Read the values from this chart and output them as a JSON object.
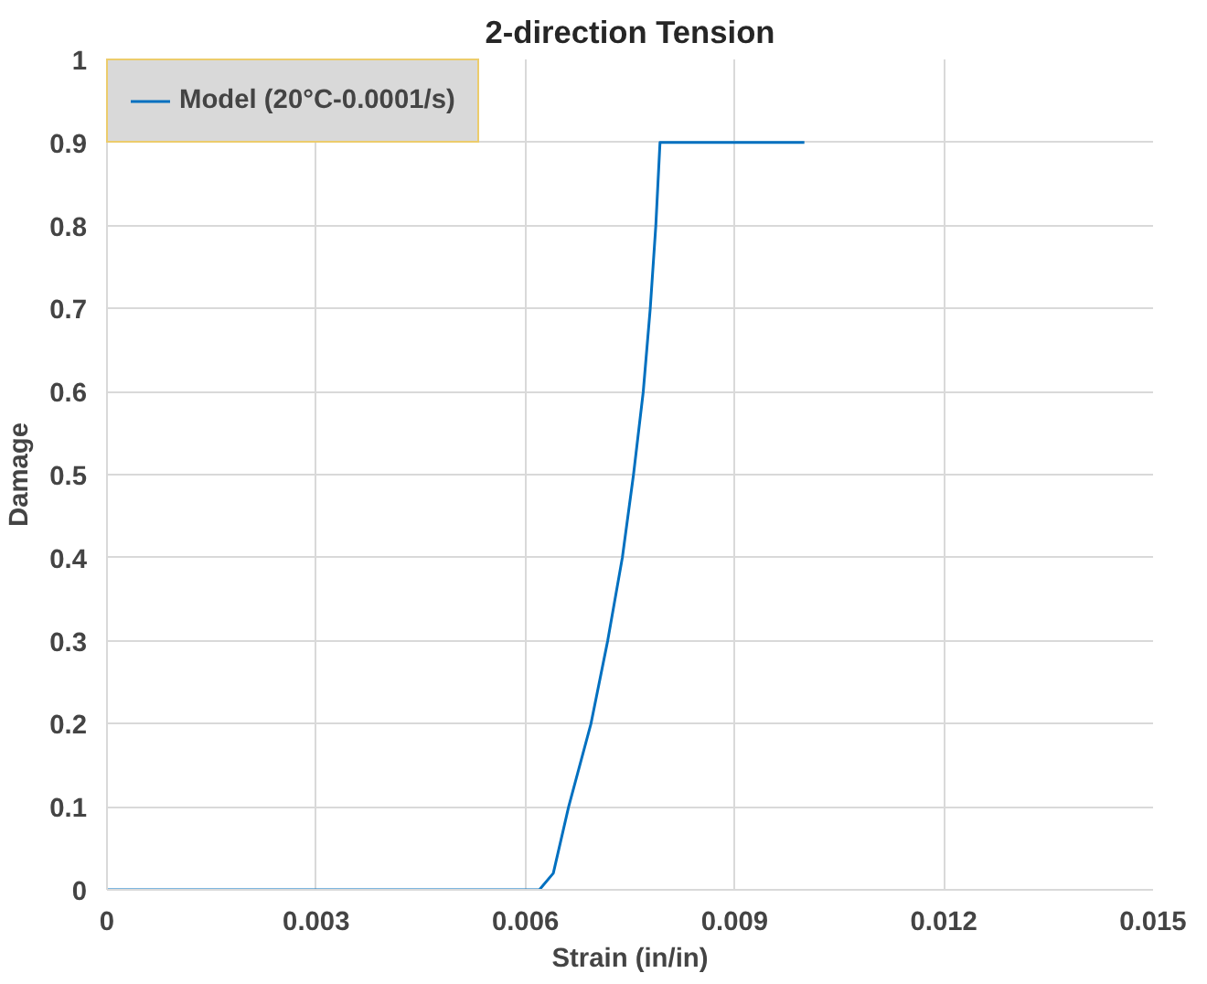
{
  "chart_data": {
    "type": "line",
    "title": "2-direction Tension",
    "xlabel": "Strain (in/in)",
    "ylabel": "Damage",
    "xlim": [
      0,
      0.015
    ],
    "xticks": [
      {
        "value": 0,
        "label": "0"
      },
      0.003,
      0.006,
      0.009,
      0.012,
      0.015
    ],
    "ylim": [
      0,
      1
    ],
    "yticks": [
      0,
      0.1,
      0.2,
      0.3,
      0.4,
      0.5,
      0.6,
      0.7,
      0.8,
      0.9,
      1
    ],
    "grid": true,
    "legend": "top left",
    "marker": "none",
    "line_style": "solid",
    "series": [
      {
        "name": "Model (20°C-0.0001/s)",
        "color": "#0070c0",
        "x": [
          0,
          0.0062,
          0.0064,
          0.00662,
          0.00694,
          0.00718,
          0.00739,
          0.00755,
          0.00769,
          0.00779,
          0.00787,
          0.00793,
          0.01
        ],
        "values": [
          0,
          0,
          0.02,
          0.1,
          0.2,
          0.3,
          0.4,
          0.5,
          0.6,
          0.7,
          0.8,
          0.9,
          0.9
        ]
      }
    ]
  }
}
